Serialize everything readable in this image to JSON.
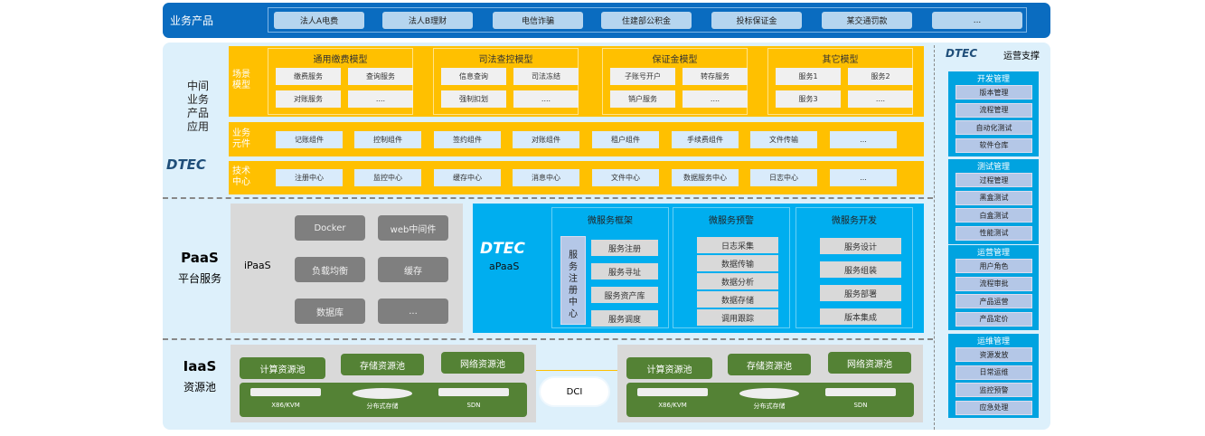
{
  "business_products": {
    "label": "业务产品",
    "items": [
      "法人A电费",
      "法人B理财",
      "电信诈骗",
      "住建部公积金",
      "投标保证金",
      "某交通罚款",
      "..."
    ]
  },
  "middle_layer": {
    "label": "中间业务产品应用",
    "logo": "DTEC",
    "scene_label": "场景模型",
    "scene_models": [
      {
        "title": "通用缴费模型",
        "items": [
          "缴费服务",
          "查询服务",
          "对账服务",
          "...."
        ]
      },
      {
        "title": "司法查控模型",
        "items": [
          "信息查询",
          "司法冻结",
          "强制扣划",
          "...."
        ]
      },
      {
        "title": "保证金模型",
        "items": [
          "子账号开户",
          "转存服务",
          "销户服务",
          "...."
        ]
      },
      {
        "title": "其它模型",
        "items": [
          "服务1",
          "服务2",
          "服务3",
          "...."
        ]
      }
    ],
    "component_label": "业务元件",
    "components": [
      "记账组件",
      "控制组件",
      "签约组件",
      "对账组件",
      "租户组件",
      "手续费组件",
      "文件传输",
      "..."
    ],
    "tech_label": "技术中心",
    "tech_centers": [
      "注册中心",
      "监控中心",
      "缓存中心",
      "消息中心",
      "文件中心",
      "数据服务中心",
      "日志中心",
      "..."
    ]
  },
  "paas": {
    "title": "PaaS",
    "subtitle": "平台服务",
    "ipaas_label": "iPaaS",
    "ipaas_items": [
      "Docker",
      "web中间件",
      "负载均衡",
      "缓存",
      "数据库",
      "..."
    ],
    "apaas_logo": "DTEC",
    "apaas_label": "aPaaS",
    "registry_center": "服务注册中心",
    "groups": [
      {
        "title": "微服务框架",
        "items": [
          "服务注册",
          "服务寻址",
          "服务资产库",
          "服务调度"
        ]
      },
      {
        "title": "微服务预警",
        "items": [
          "日志采集",
          "数据传输",
          "数据分析",
          "数据存储",
          "调用跟踪"
        ]
      },
      {
        "title": "微服务开发",
        "items": [
          "服务设计",
          "服务组装",
          "服务部署",
          "版本集成"
        ]
      }
    ]
  },
  "iaas": {
    "title": "IaaS",
    "subtitle": "资源池",
    "dci": "DCI",
    "pools": [
      "计算资源池",
      "存储资源池",
      "网络资源池"
    ],
    "devices": [
      "X86/KVM",
      "分布式存储",
      "SDN"
    ]
  },
  "operations": {
    "logo": "DTEC",
    "title": "运营支撑",
    "groups": [
      {
        "title": "开发管理",
        "items": [
          "版本管理",
          "流程管理",
          "自动化测试",
          "软件仓库"
        ]
      },
      {
        "title": "测试管理",
        "items": [
          "过程管理",
          "黑盒测试",
          "白盒测试",
          "性能测试"
        ]
      },
      {
        "title": "运营管理",
        "items": [
          "用户角色",
          "流程审批",
          "产品运营",
          "产品定价"
        ]
      },
      {
        "title": "运维管理",
        "items": [
          "资源发放",
          "日常运维",
          "监控预警",
          "应急处理"
        ]
      }
    ]
  },
  "colors": {
    "top_bar": "#0a6cc0",
    "panel": "#ddf0fb",
    "yellow": "#ffc000",
    "apaas": "#00aeef",
    "green": "#548235",
    "gray": "#d9d9d9"
  }
}
